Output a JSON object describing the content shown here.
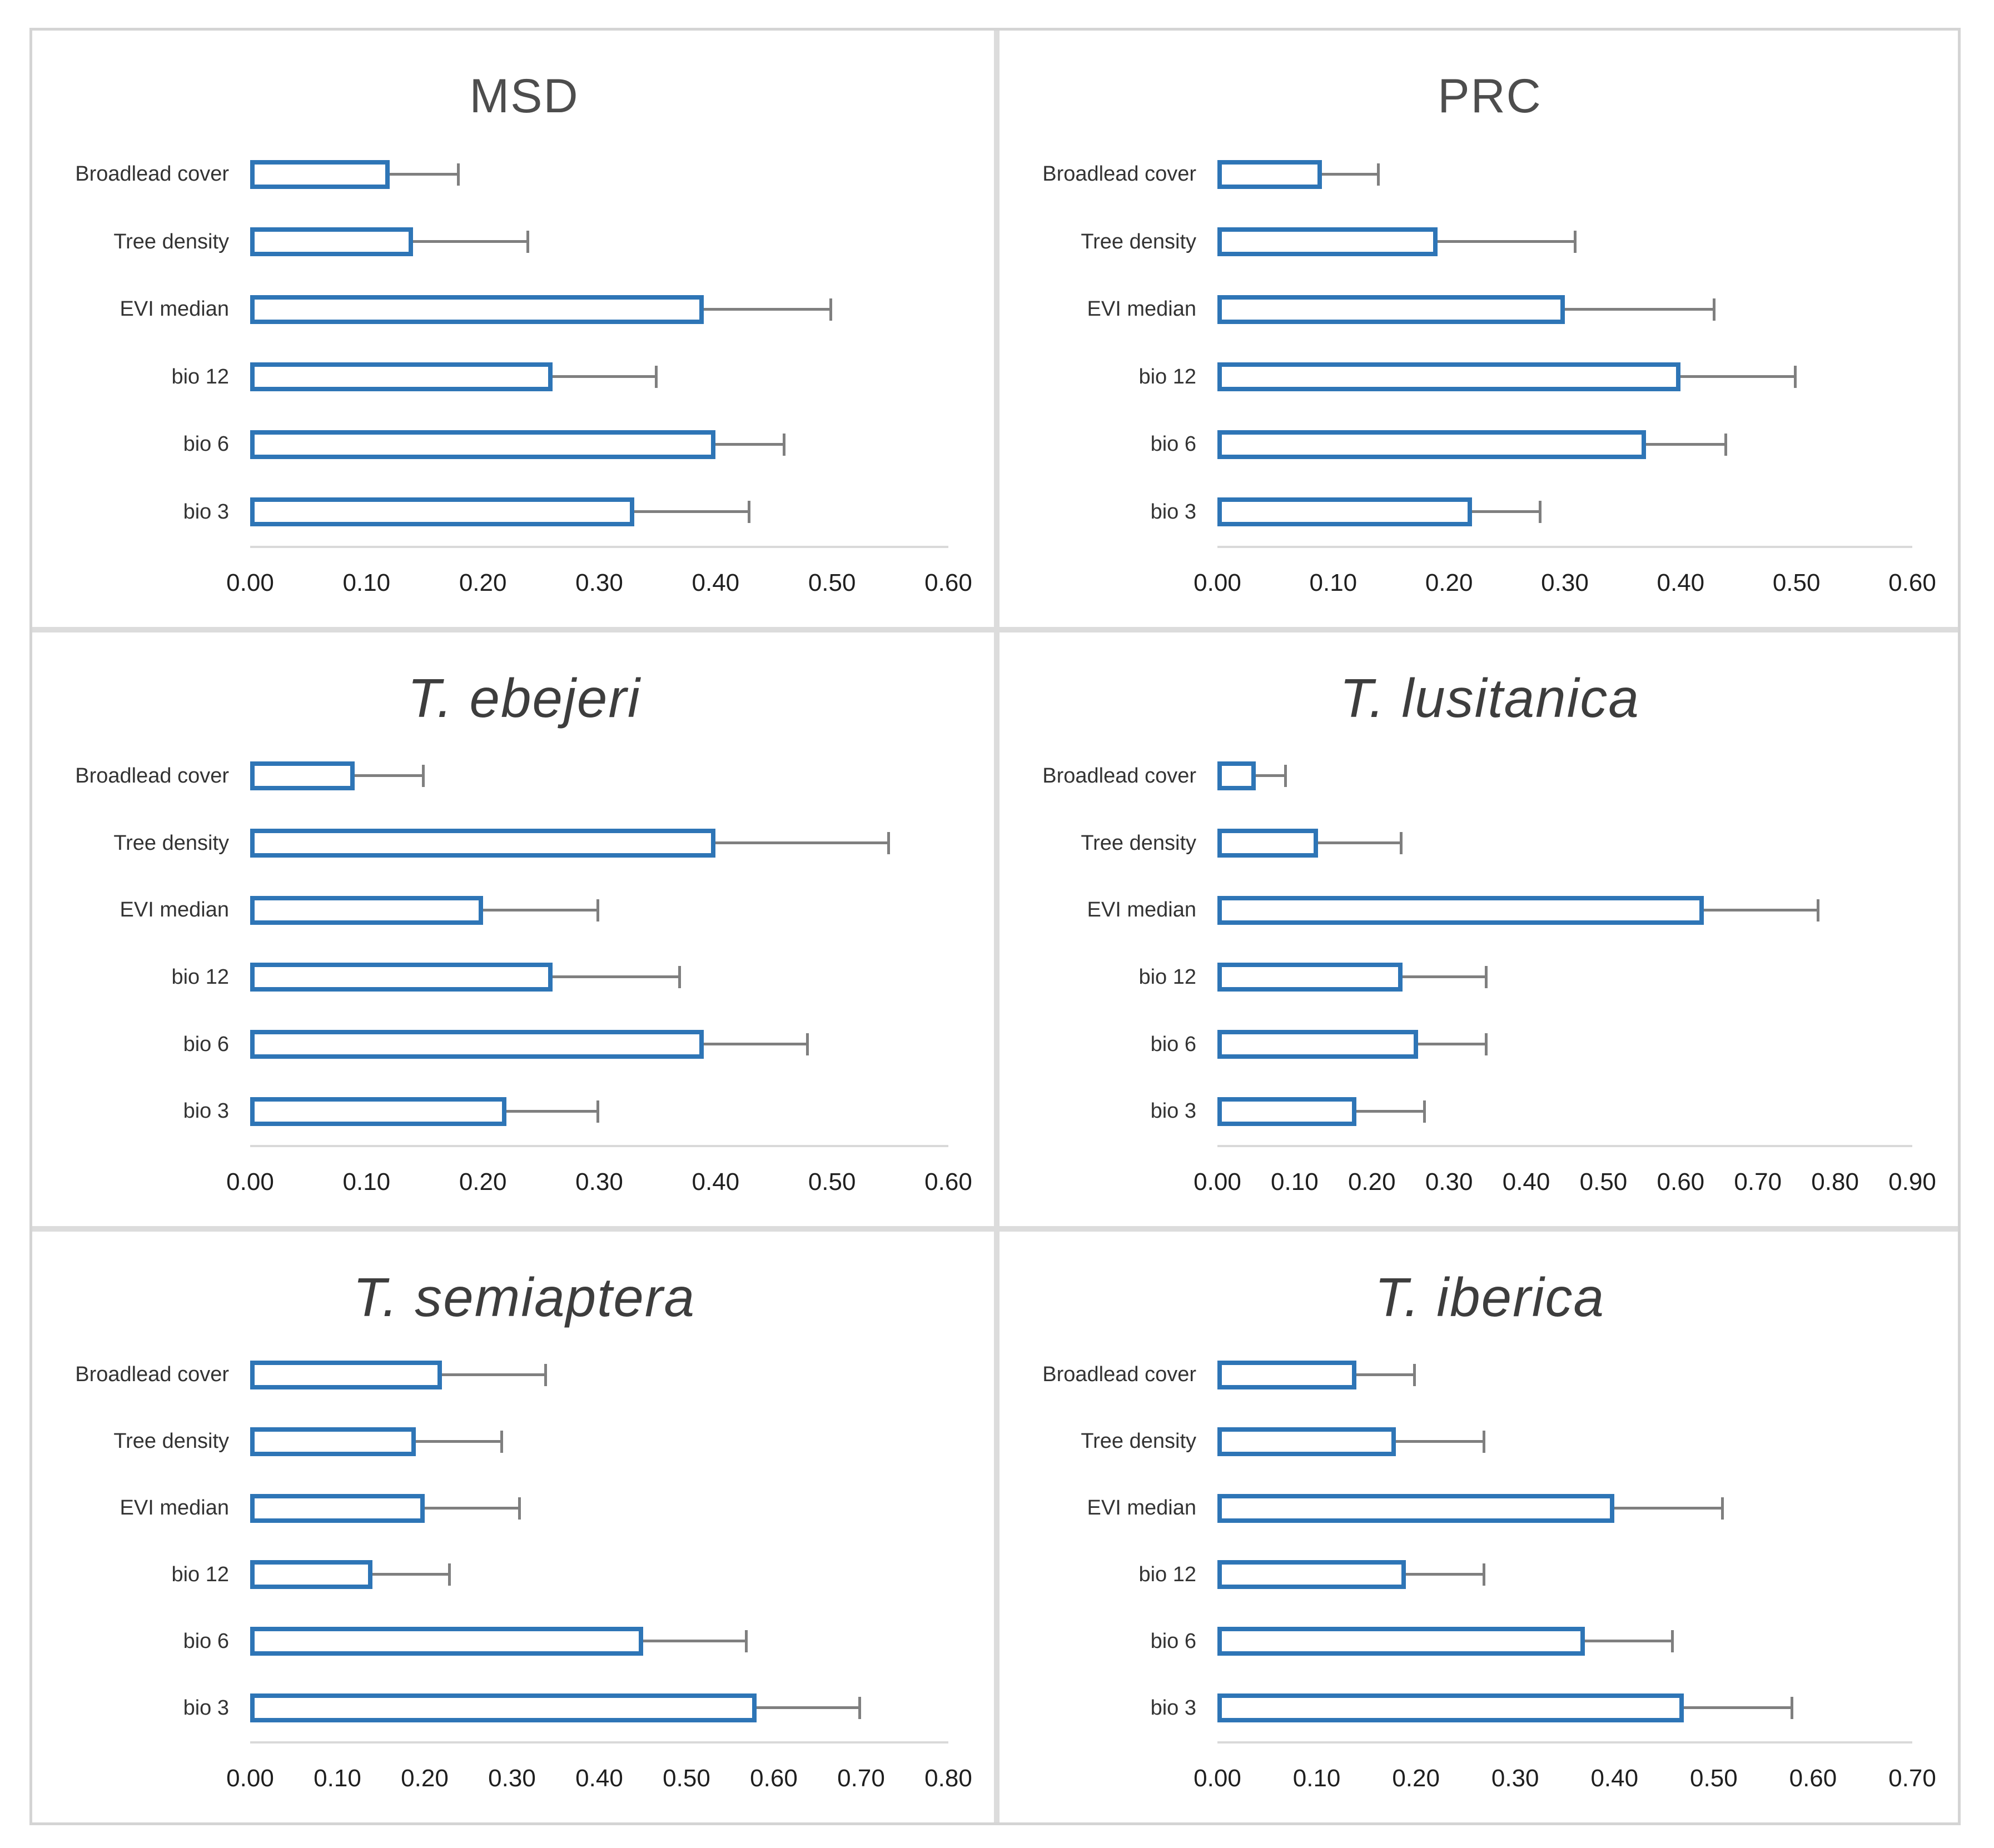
{
  "figure": {
    "colors": {
      "bar_border": "#2E75B6",
      "bar_fill": "#ffffff",
      "error_color": "#7f7f7f",
      "axis_line_color": "#d9d9d9",
      "grid_line_color": "#dcdcdc",
      "frame_color": "#d4d4d4",
      "title_color": "#4d4d4d",
      "species_title_color": "#3d3d3d",
      "label_color": "#333333",
      "tick_color": "#1f1f1f"
    }
  },
  "categories": [
    "Broadlead cover",
    "Tree density",
    "EVI median",
    "bio 12",
    "bio 6",
    "bio 3"
  ],
  "chart_data": [
    {
      "type": "bar",
      "orientation": "horizontal",
      "title": "MSD",
      "title_style": "normal",
      "categories": [
        "Broadlead cover",
        "Tree density",
        "EVI median",
        "bio 12",
        "bio 6",
        "bio 3"
      ],
      "values": [
        0.12,
        0.14,
        0.39,
        0.26,
        0.4,
        0.33
      ],
      "error_upper": [
        0.18,
        0.24,
        0.5,
        0.35,
        0.46,
        0.43
      ],
      "xlim": [
        0.0,
        0.6
      ],
      "tick_step": 0.1,
      "tick_labels": [
        "0.00",
        "0.10",
        "0.20",
        "0.30",
        "0.40",
        "0.50",
        "0.60"
      ],
      "grid": false,
      "legend": "none"
    },
    {
      "type": "bar",
      "orientation": "horizontal",
      "title": "PRC",
      "title_style": "normal",
      "categories": [
        "Broadlead cover",
        "Tree density",
        "EVI median",
        "bio 12",
        "bio 6",
        "bio 3"
      ],
      "values": [
        0.09,
        0.19,
        0.3,
        0.4,
        0.37,
        0.22
      ],
      "error_upper": [
        0.14,
        0.31,
        0.43,
        0.5,
        0.44,
        0.28
      ],
      "xlim": [
        0.0,
        0.6
      ],
      "tick_step": 0.1,
      "tick_labels": [
        "0.00",
        "0.10",
        "0.20",
        "0.30",
        "0.40",
        "0.50",
        "0.60"
      ],
      "grid": false,
      "legend": "none"
    },
    {
      "type": "bar",
      "orientation": "horizontal",
      "title": "T. ebejeri",
      "title_style": "italic",
      "categories": [
        "Broadlead cover",
        "Tree density",
        "EVI median",
        "bio 12",
        "bio 6",
        "bio 3"
      ],
      "values": [
        0.09,
        0.4,
        0.2,
        0.26,
        0.39,
        0.22
      ],
      "error_upper": [
        0.15,
        0.55,
        0.3,
        0.37,
        0.48,
        0.3
      ],
      "xlim": [
        0.0,
        0.6
      ],
      "tick_step": 0.1,
      "tick_labels": [
        "0.00",
        "0.10",
        "0.20",
        "0.30",
        "0.40",
        "0.50",
        "0.60"
      ],
      "grid": false,
      "legend": "none"
    },
    {
      "type": "bar",
      "orientation": "horizontal",
      "title": "T. lusitanica",
      "title_style": "italic",
      "categories": [
        "Broadlead cover",
        "Tree density",
        "EVI median",
        "bio 12",
        "bio 6",
        "bio 3"
      ],
      "values": [
        0.05,
        0.13,
        0.63,
        0.24,
        0.26,
        0.18
      ],
      "error_upper": [
        0.09,
        0.24,
        0.78,
        0.35,
        0.35,
        0.27
      ],
      "xlim": [
        0.0,
        0.9
      ],
      "tick_step": 0.1,
      "tick_labels": [
        "0.00",
        "0.10",
        "0.20",
        "0.30",
        "0.40",
        "0.50",
        "0.60",
        "0.70",
        "0.80",
        "0.90"
      ],
      "grid": false,
      "legend": "none"
    },
    {
      "type": "bar",
      "orientation": "horizontal",
      "title": "T. semiaptera",
      "title_style": "italic",
      "categories": [
        "Broadlead cover",
        "Tree density",
        "EVI median",
        "bio 12",
        "bio 6",
        "bio 3"
      ],
      "values": [
        0.22,
        0.19,
        0.2,
        0.14,
        0.45,
        0.58
      ],
      "error_upper": [
        0.34,
        0.29,
        0.31,
        0.23,
        0.57,
        0.7
      ],
      "xlim": [
        0.0,
        0.8
      ],
      "tick_step": 0.1,
      "tick_labels": [
        "0.00",
        "0.10",
        "0.20",
        "0.30",
        "0.40",
        "0.50",
        "0.60",
        "0.70",
        "0.80"
      ],
      "grid": false,
      "legend": "none"
    },
    {
      "type": "bar",
      "orientation": "horizontal",
      "title": "T. iberica",
      "title_style": "italic",
      "categories": [
        "Broadlead cover",
        "Tree density",
        "EVI median",
        "bio 12",
        "bio 6",
        "bio 3"
      ],
      "values": [
        0.14,
        0.18,
        0.4,
        0.19,
        0.37,
        0.47
      ],
      "error_upper": [
        0.2,
        0.27,
        0.51,
        0.27,
        0.46,
        0.58
      ],
      "xlim": [
        0.0,
        0.7
      ],
      "tick_step": 0.1,
      "tick_labels": [
        "0.00",
        "0.10",
        "0.20",
        "0.30",
        "0.40",
        "0.50",
        "0.60",
        "0.70"
      ],
      "grid": false,
      "legend": "none"
    }
  ]
}
